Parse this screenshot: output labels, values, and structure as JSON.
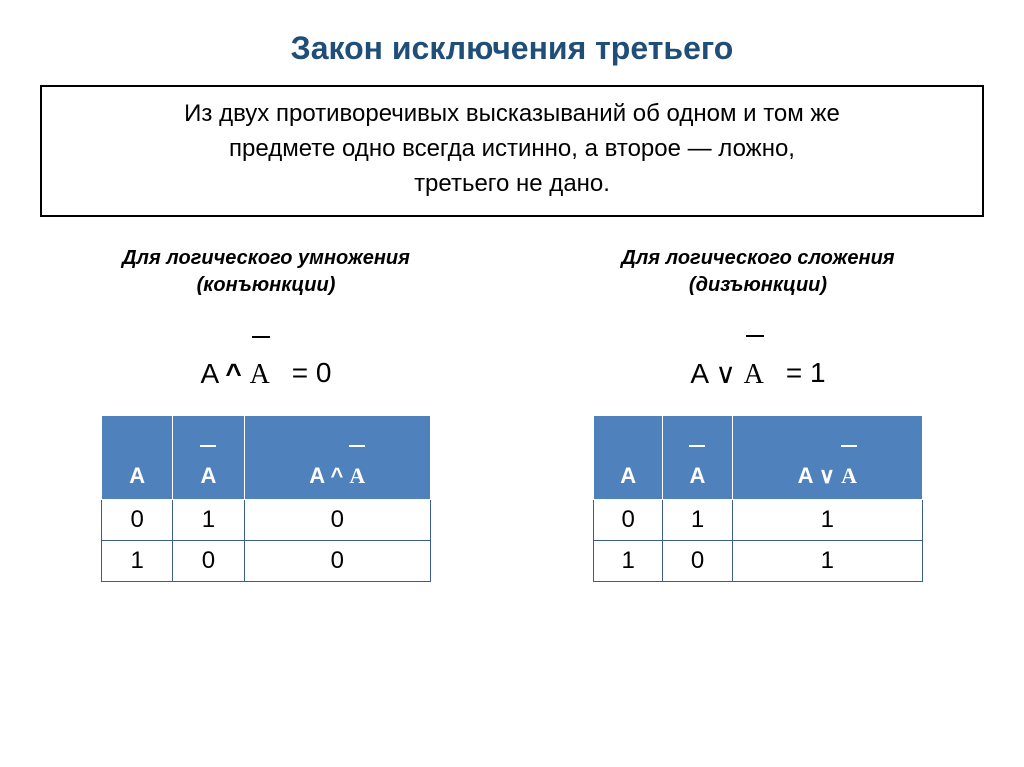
{
  "title": {
    "text": "Закон исключения третьего",
    "color": "#1f4e79",
    "fontsize": 32
  },
  "definition": {
    "line1": "Из двух противоречивых высказываний об одном и том же",
    "line2": "предмете одно всегда истинно, а второе — ложно,",
    "line3": "третьего не дано.",
    "fontsize": 24
  },
  "subheading_fontsize": 20,
  "formula_fontsize": 28,
  "table": {
    "header_bg": "#4f81bd",
    "header_fg": "#ffffff",
    "cell_border": "#3b5e8c",
    "cell_fontsize": 24,
    "header_fontsize": 22
  },
  "left": {
    "subheading_l1": "Для логического умножения",
    "subheading_l2": "(конъюнкции)",
    "formula_lhs_a": "A",
    "formula_lhs_op": "^",
    "formula_lhs_b": "A",
    "formula_rhs": "= 0",
    "headers": {
      "c1": "A",
      "c2": "A",
      "c3_a": "A",
      "c3_op": "^",
      "c3_b": "A"
    },
    "rows": [
      [
        "0",
        "1",
        "0"
      ],
      [
        "1",
        "0",
        "0"
      ]
    ]
  },
  "right": {
    "subheading_l1": "Для логического сложения",
    "subheading_l2": "(дизъюнкции)",
    "formula_lhs_a": "A",
    "formula_lhs_op": "∨",
    "formula_lhs_b": "A",
    "formula_rhs": "= 1",
    "headers": {
      "c1": "A",
      "c2": "A",
      "c3_a": "A",
      "c3_op": "∨",
      "c3_b": "A"
    },
    "rows": [
      [
        "0",
        "1",
        "1"
      ],
      [
        "1",
        "0",
        "1"
      ]
    ]
  }
}
